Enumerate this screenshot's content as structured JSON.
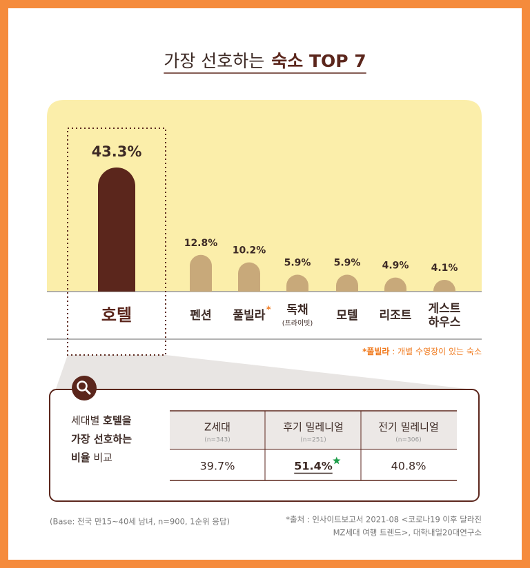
{
  "title": "가장 선호하는",
  "title_emphasis": "숙소 TOP 7",
  "chart_data": {
    "type": "bar",
    "categories": [
      "호텔",
      "펜션",
      "풀빌라",
      "독채",
      "모텔",
      "리조트",
      "게스트 하우스"
    ],
    "category_marks": [
      null,
      null,
      "*",
      null,
      null,
      null,
      null
    ],
    "category_sublabels": [
      null,
      null,
      null,
      "(프라이빗)",
      null,
      null,
      null
    ],
    "values": [
      43.3,
      12.8,
      10.2,
      5.9,
      5.9,
      4.9,
      4.1
    ],
    "value_labels": [
      "43.3%",
      "12.8%",
      "10.2%",
      "5.9%",
      "5.9%",
      "4.9%",
      "4.1%"
    ],
    "colors": [
      "#5b261c",
      "#c8a97a",
      "#c8a97a",
      "#c8a97a",
      "#c8a97a",
      "#c8a97a",
      "#c8a97a"
    ]
  },
  "note": {
    "term": "*풀빌라",
    "text": " : 개별 수영장이 있는 숙소"
  },
  "comparison": {
    "intro": [
      [
        {
          "text": "세대별 ",
          "bold": false
        },
        {
          "text": "호텔을",
          "bold": true
        }
      ],
      [
        {
          "text": "가장 선호하는",
          "bold": true
        }
      ],
      [
        {
          "text": "비율",
          "bold": true
        },
        {
          "text": " 비교",
          "bold": false
        }
      ]
    ],
    "columns": [
      {
        "name": "Z세대",
        "n": "(n=343)",
        "value": "39.7%",
        "emphasis": false
      },
      {
        "name": "후기 밀레니얼",
        "n": "(n=251)",
        "value": "51.4%",
        "emphasis": true
      },
      {
        "name": "전기 밀레니얼",
        "n": "(n=306)",
        "value": "40.8%",
        "emphasis": false
      }
    ]
  },
  "footer": {
    "base": "(Base: 전국 만15~40세 남녀, n=900, 1순위 응답)",
    "source": [
      "*출처 : 인사이트보고서 2021-08 <코로나19 이후 달라진",
      "MZ세대 여행 트렌드>, 대학내일20대연구소"
    ]
  }
}
